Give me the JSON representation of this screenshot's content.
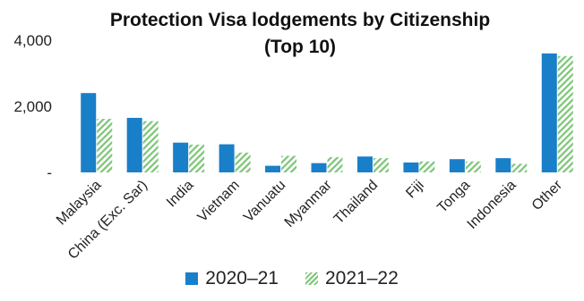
{
  "chart_data": {
    "type": "bar",
    "title_lines": [
      "Protection Visa lodgements by Citizenship",
      "(Top 10)"
    ],
    "categories": [
      "Malaysia",
      "China (Exc. Sar)",
      "India",
      "Vietnam",
      "Vanuatu",
      "Myanmar",
      "Thailand",
      "Fiji",
      "Tonga",
      "Indonesia",
      "Other"
    ],
    "series": [
      {
        "name": "2020–21",
        "color": "#1a7fc9",
        "values": [
          2400,
          1650,
          900,
          850,
          200,
          280,
          480,
          300,
          400,
          430,
          3600
        ]
      },
      {
        "name": "2021–22",
        "color": "#7cc576",
        "values": [
          1620,
          1550,
          840,
          600,
          500,
          460,
          430,
          330,
          330,
          260,
          3520
        ]
      }
    ],
    "y_ticks": [
      {
        "value": 0,
        "label": "-"
      },
      {
        "value": 2000,
        "label": "2,000"
      },
      {
        "value": 4000,
        "label": "4,000"
      }
    ],
    "ylim": [
      0,
      4000
    ],
    "grid": false,
    "legend_position": "bottom"
  }
}
